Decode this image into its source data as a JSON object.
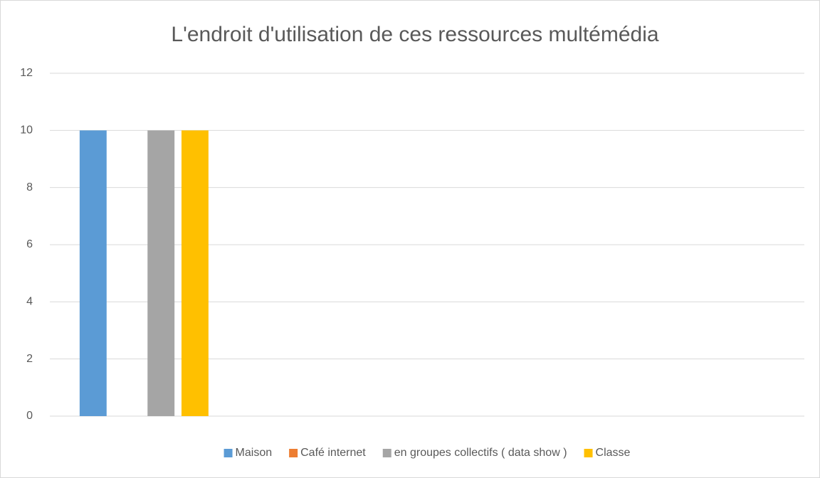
{
  "chart_data": {
    "type": "bar",
    "title": "L'endroit d'utilisation de ces ressources  multémédia",
    "categories": [
      null,
      null,
      null,
      null
    ],
    "series": [
      {
        "name": "Maison",
        "color": "#5b9bd5",
        "values": [
          10,
          null,
          null,
          null
        ]
      },
      {
        "name": "Café internet",
        "color": "#ed7d31",
        "values": [
          0,
          null,
          null,
          null
        ]
      },
      {
        "name": "en groupes collectifs ( data show )",
        "color": "#a5a5a5",
        "values": [
          10,
          null,
          null,
          null
        ]
      },
      {
        "name": "Classe",
        "color": "#ffc000",
        "values": [
          10,
          null,
          null,
          null
        ]
      }
    ],
    "ylim": [
      0,
      12
    ],
    "yticks": [
      0,
      2,
      4,
      6,
      8,
      10,
      12
    ],
    "grid": true,
    "legend": "bottom"
  }
}
